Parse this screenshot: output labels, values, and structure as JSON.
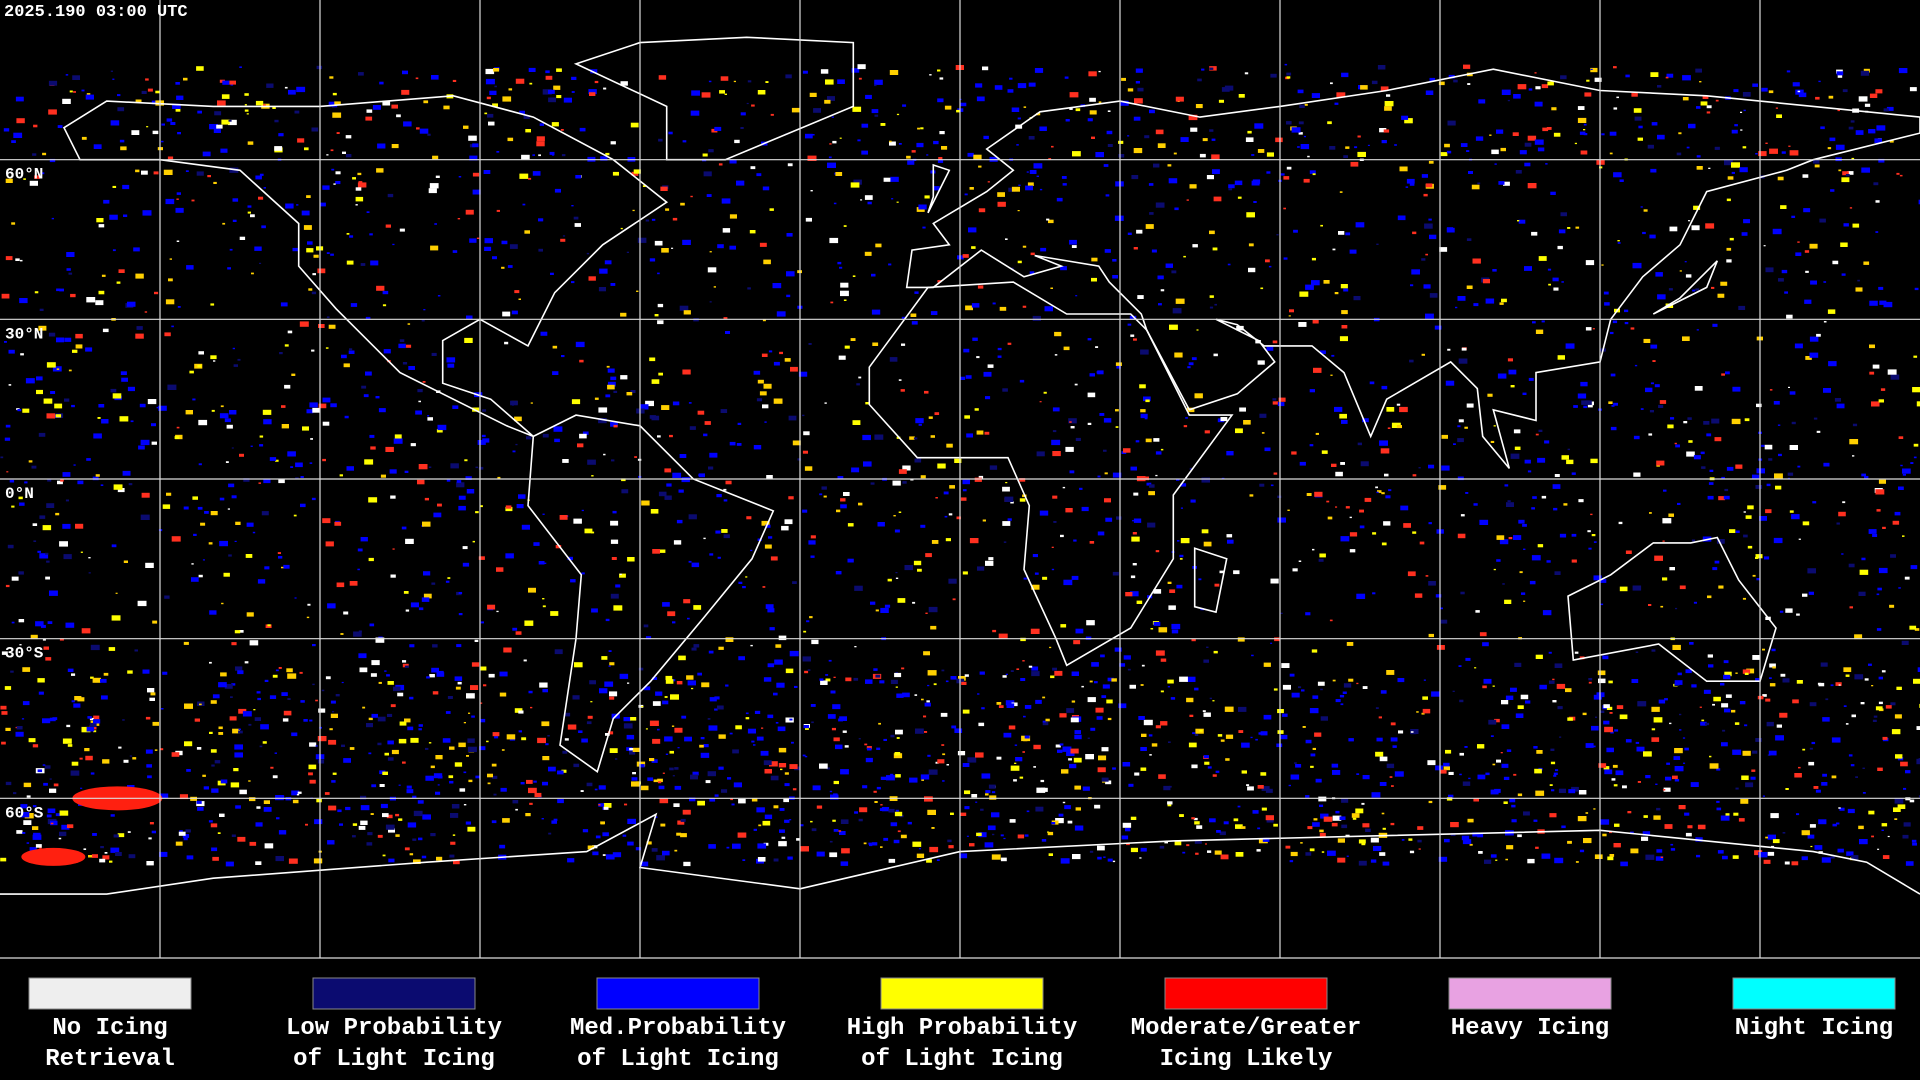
{
  "header": {
    "timestamp": "2025.190 03:00 UTC"
  },
  "latitude_labels": [
    "60°N",
    "30°N",
    "0°N",
    "30°S",
    "60°S"
  ],
  "legend": [
    {
      "lines": [
        "No Icing",
        "Retrieval"
      ],
      "color": "#eeeeee"
    },
    {
      "lines": [
        "Low Probability",
        "of Light Icing"
      ],
      "color": "#0b0b70"
    },
    {
      "lines": [
        "Med.Probability",
        "of Light Icing"
      ],
      "color": "#0000ff"
    },
    {
      "lines": [
        "High Probability",
        "of Light Icing"
      ],
      "color": "#ffff00"
    },
    {
      "lines": [
        "Moderate/Greater",
        "Icing Likely"
      ],
      "color": "#ff0000"
    },
    {
      "lines": [
        "Heavy Icing"
      ],
      "color": "#e8a2e2"
    },
    {
      "lines": [
        "Night Icing"
      ],
      "color": "#00ffff"
    }
  ]
}
